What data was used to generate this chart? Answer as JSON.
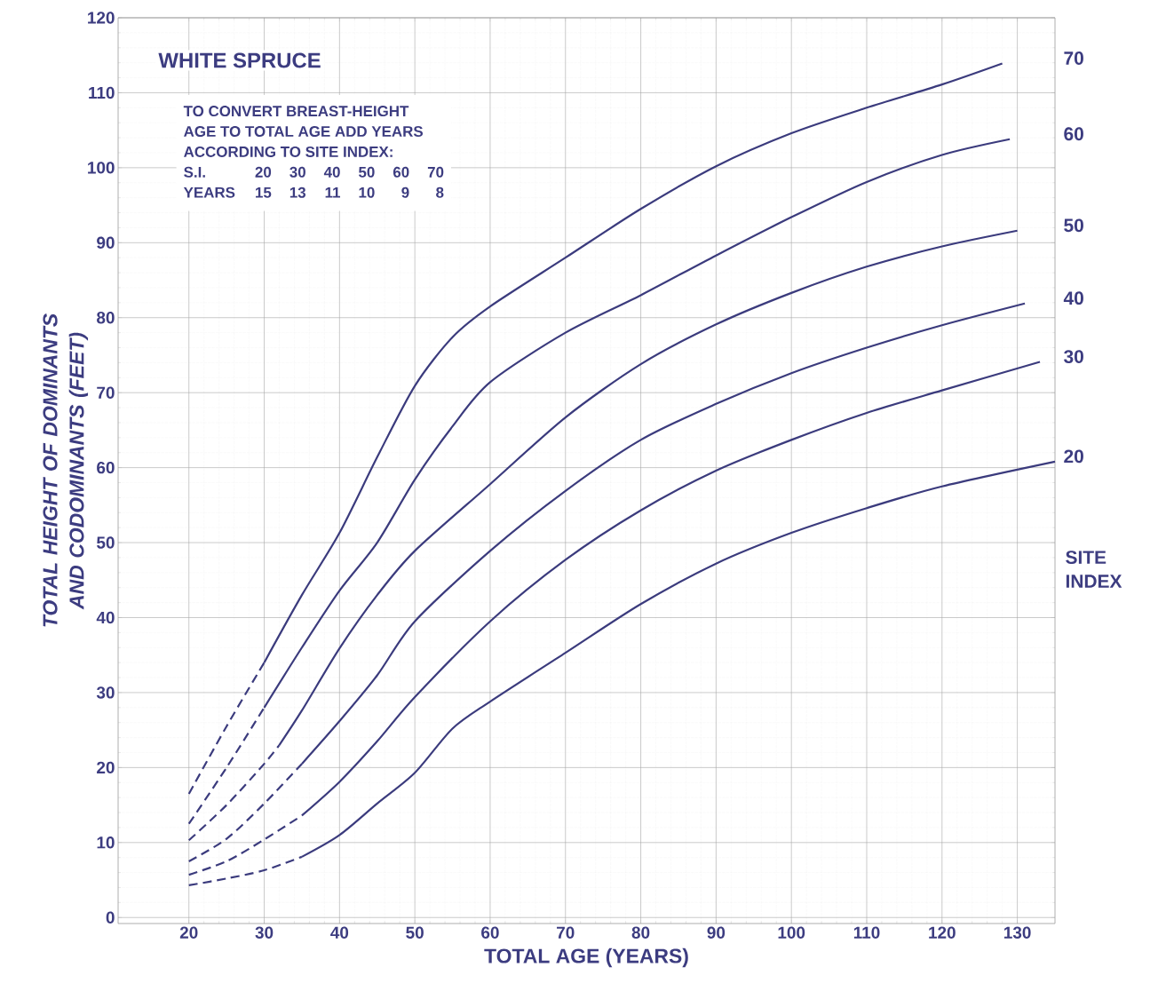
{
  "chart_data": {
    "type": "line",
    "title": "WHITE SPRUCE",
    "xlabel": "TOTAL AGE (YEARS)",
    "ylabel": "TOTAL HEIGHT OF DOMINANTS AND CODOMINANTS (FEET)",
    "xlim": [
      10.6,
      135
    ],
    "ylim": [
      -0.8,
      120
    ],
    "xticks": [
      20,
      30,
      40,
      50,
      60,
      70,
      80,
      90,
      100,
      110,
      120,
      130
    ],
    "yticks": [
      0,
      10,
      20,
      30,
      40,
      50,
      60,
      70,
      80,
      90,
      100,
      110,
      120
    ],
    "grid": true,
    "line_style": "solid",
    "annotations": [
      "TO CONVERT BREAST-HEIGHT",
      "AGE TO TOTAL AGE ADD YEARS",
      "ACCORDING TO SITE INDEX:",
      "S.I.",
      "20",
      "30",
      "40",
      "50",
      "60",
      "70",
      "YEARS",
      "15",
      "13",
      "11",
      "10",
      "9",
      "8",
      "SITE INDEX"
    ],
    "series": [
      {
        "color": "#3b3b7d",
        "line_style": "dashed",
        "x": [
          20,
          25,
          30
        ],
        "values": [
          16.5,
          25.5,
          34
        ]
      },
      {
        "name": "70",
        "color": "#3b3b7d",
        "x": [
          30,
          35,
          40,
          45,
          50,
          55,
          60,
          70,
          80,
          90,
          100,
          110,
          120,
          128
        ],
        "values": [
          34,
          43,
          51.3,
          61.4,
          70.9,
          77.4,
          81.5,
          88,
          94.5,
          100.2,
          104.6,
          108,
          111.1,
          113.9
        ]
      },
      {
        "color": "#3b3b7d",
        "line_style": "dashed",
        "x": [
          20,
          25,
          30
        ],
        "values": [
          12.5,
          20,
          28
        ]
      },
      {
        "name": "60",
        "color": "#3b3b7d",
        "x": [
          30,
          35,
          40,
          45,
          50,
          55,
          60,
          70,
          80,
          90,
          100,
          110,
          120,
          129
        ],
        "values": [
          28,
          36,
          43.6,
          50,
          58.4,
          65.5,
          71.4,
          78,
          83,
          88.3,
          93.4,
          98.1,
          101.7,
          103.8
        ]
      },
      {
        "color": "#3b3b7d",
        "line_style": "dashed",
        "x": [
          20,
          25,
          30,
          32
        ],
        "values": [
          10.3,
          15,
          20.5,
          23
        ]
      },
      {
        "name": "50",
        "color": "#3b3b7d",
        "x": [
          32,
          35,
          40,
          45,
          50,
          60,
          70,
          80,
          90,
          100,
          110,
          120,
          130
        ],
        "values": [
          23,
          27.6,
          35.9,
          43,
          48.9,
          57.8,
          66.7,
          73.8,
          79.1,
          83.3,
          86.8,
          89.5,
          91.6
        ]
      },
      {
        "color": "#3b3b7d",
        "line_style": "dashed",
        "x": [
          20,
          25,
          30,
          35
        ],
        "values": [
          7.5,
          10.5,
          15.2,
          20.5
        ]
      },
      {
        "name": "40",
        "color": "#3b3b7d",
        "x": [
          35,
          40,
          45,
          50,
          60,
          70,
          80,
          90,
          100,
          110,
          120,
          131
        ],
        "values": [
          20.5,
          26.2,
          32.3,
          39.5,
          48.9,
          56.9,
          63.7,
          68.5,
          72.6,
          76,
          79,
          81.9
        ]
      },
      {
        "color": "#3b3b7d",
        "line_style": "dashed",
        "x": [
          20,
          25,
          30,
          35
        ],
        "values": [
          5.7,
          7.5,
          10.4,
          13.6
        ]
      },
      {
        "name": "30",
        "color": "#3b3b7d",
        "x": [
          35,
          40,
          45,
          50,
          60,
          70,
          80,
          90,
          100,
          110,
          120,
          133
        ],
        "values": [
          13.6,
          18.1,
          23.5,
          29.4,
          39.5,
          47.7,
          54.3,
          59.6,
          63.7,
          67.3,
          70.3,
          74.1
        ]
      },
      {
        "color": "#3b3b7d",
        "line_style": "dashed",
        "x": [
          20,
          25,
          30,
          35
        ],
        "values": [
          4.3,
          5.2,
          6.3,
          8.1
        ]
      },
      {
        "name": "20",
        "color": "#3b3b7d",
        "x": [
          35,
          40,
          45,
          50,
          55,
          60,
          70,
          80,
          90,
          100,
          110,
          120,
          135
        ],
        "values": [
          8.1,
          11,
          15.2,
          19.3,
          25.2,
          28.8,
          35.3,
          41.8,
          47.2,
          51.3,
          54.6,
          57.5,
          60.8
        ]
      }
    ]
  }
}
